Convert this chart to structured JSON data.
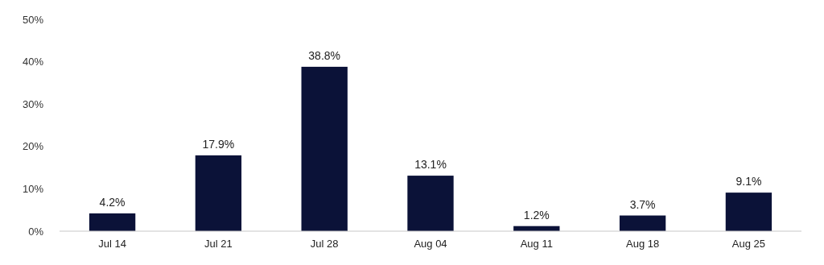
{
  "chart_data": {
    "type": "bar",
    "categories": [
      "Jul 14",
      "Jul 21",
      "Jul 28",
      "Aug 04",
      "Aug 11",
      "Aug 18",
      "Aug 25"
    ],
    "values": [
      4.2,
      17.9,
      38.8,
      13.1,
      1.2,
      3.7,
      9.1
    ],
    "value_labels": [
      "4.2%",
      "17.9%",
      "38.8%",
      "13.1%",
      "1.2%",
      "3.7%",
      "9.1%"
    ],
    "color": "#0b1238",
    "ylim": [
      0,
      50
    ],
    "yticks": [
      {
        "value": 0,
        "label": "0%"
      },
      {
        "value": 10,
        "label": "10%"
      },
      {
        "value": 20,
        "label": "20%"
      },
      {
        "value": 30,
        "label": "30%"
      },
      {
        "value": 40,
        "label": "40%"
      },
      {
        "value": 50,
        "label": "50%"
      }
    ],
    "grid": false
  }
}
